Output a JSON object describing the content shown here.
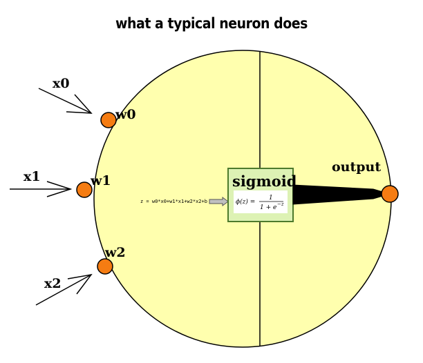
{
  "title": "what a typical neuron does",
  "inputs": [
    {
      "input_label": "x0",
      "weight_label": "w0"
    },
    {
      "input_label": "x1",
      "weight_label": "w1"
    },
    {
      "input_label": "x2",
      "weight_label": "w2"
    }
  ],
  "weighted_sum": "z = w0*x0+w1*x1+w2*x2+b",
  "activation": {
    "name": "sigmoid",
    "formula_lhs": "ϕ(z) =",
    "formula_numerator": "1",
    "formula_denominator": "1 + e",
    "formula_exponent": "−z"
  },
  "output_label": "output",
  "colors": {
    "neuron_fill": "#ffffae",
    "node_fill": "#f57c12",
    "box_fill": "#ddf2b4",
    "box_border": "#4d7a2c",
    "output_arrow": "#000000"
  }
}
